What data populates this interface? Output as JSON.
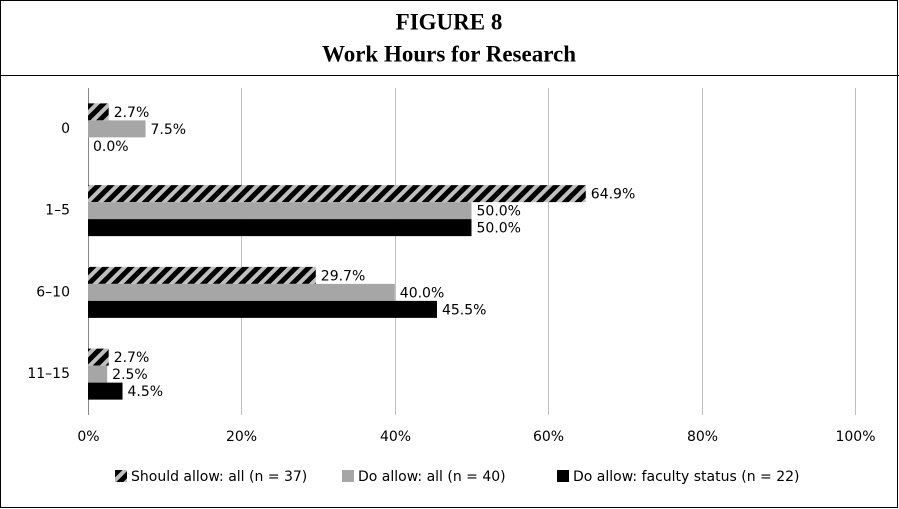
{
  "chart_data": {
    "type": "hbar",
    "title": "FIGURE 8",
    "subtitle": "Work Hours for Research",
    "categories": [
      "0",
      "1–5",
      "6–10",
      "11–15"
    ],
    "series": [
      {
        "name": "Should allow: all (n = 37)",
        "color": "#000000",
        "pattern": "hatch",
        "values": [
          2.7,
          64.9,
          29.7,
          2.7
        ],
        "value_labels": [
          "2.7%",
          "64.9%",
          "29.7%",
          "2.7%"
        ]
      },
      {
        "name": "Do allow: all (n = 40)",
        "color": "#a6a6a6",
        "values": [
          7.5,
          50.0,
          40.0,
          2.5
        ],
        "value_labels": [
          "7.5%",
          "50.0%",
          "40.0%",
          "2.5%"
        ]
      },
      {
        "name": "Do allow: faculty status (n = 22)",
        "color": "#000000",
        "values": [
          0.0,
          50.0,
          45.5,
          4.5
        ],
        "value_labels": [
          "0.0%",
          "50.0%",
          "45.5%",
          "4.5%"
        ]
      }
    ],
    "xlim": [
      0,
      100
    ],
    "xticks": [
      {
        "value": 0,
        "label": "0%"
      },
      {
        "value": 20,
        "label": "20%"
      },
      {
        "value": 40,
        "label": "40%"
      },
      {
        "value": 60,
        "label": "60%"
      },
      {
        "value": 80,
        "label": "80%"
      },
      {
        "value": 100,
        "label": "100%"
      }
    ],
    "grid": true,
    "legend": "bottom"
  }
}
